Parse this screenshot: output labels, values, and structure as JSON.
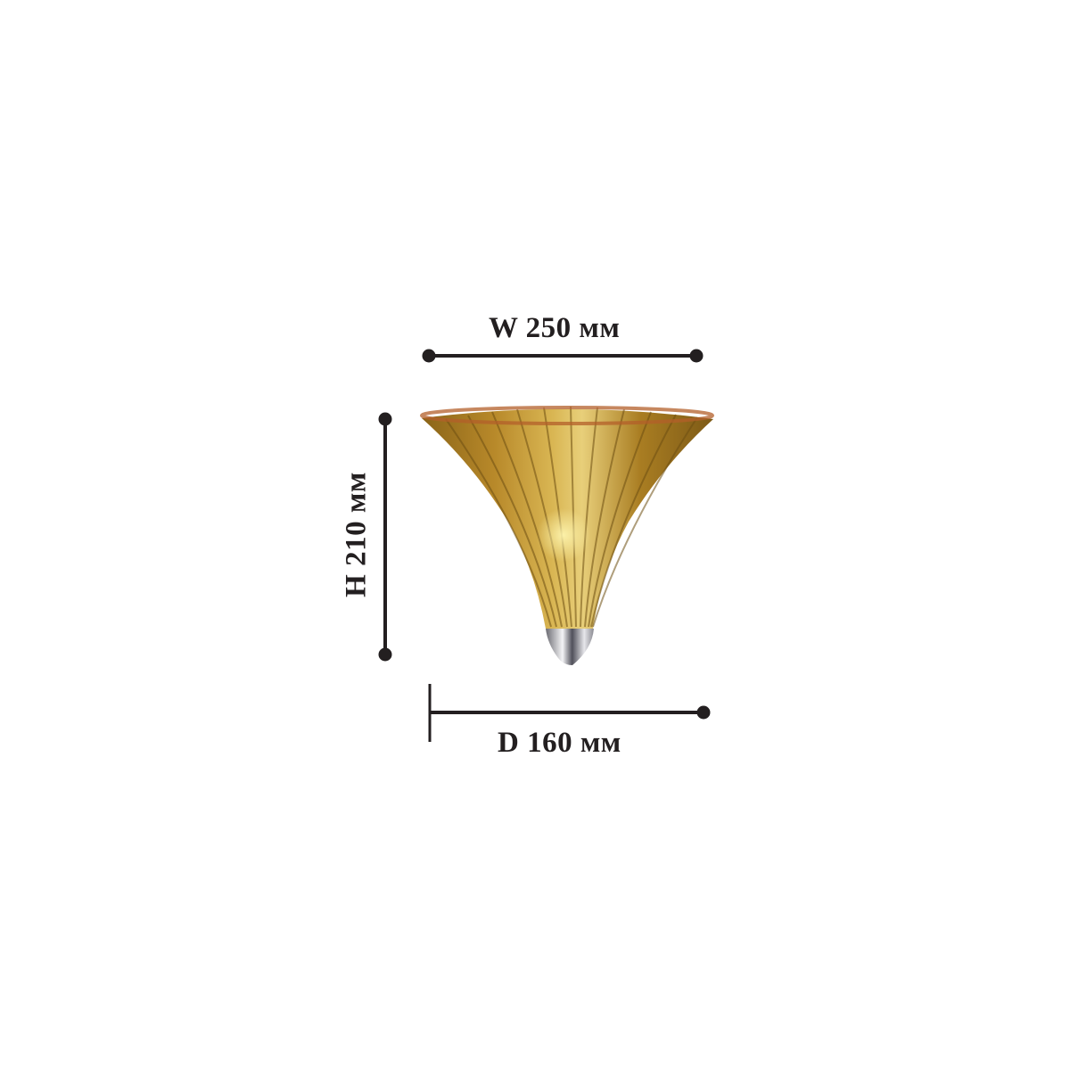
{
  "dimensions": {
    "width_label": "W 250 мм",
    "height_label": "H 210 мм",
    "depth_label": "D 160 мм"
  },
  "colors": {
    "line": "#231f20",
    "glass_amber": "#b8892a",
    "chrome": "#c9c9cf"
  }
}
